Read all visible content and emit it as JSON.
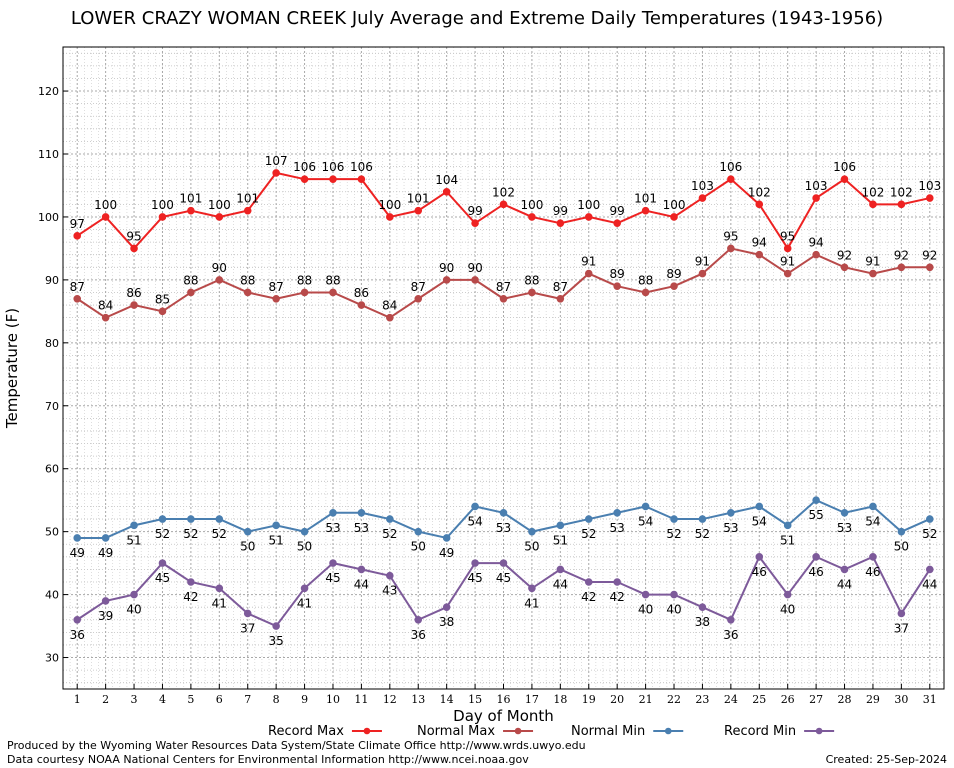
{
  "chart_data": {
    "type": "line",
    "title": "LOWER CRAZY WOMAN CREEK July Average and Extreme Daily Temperatures (1943-1956)",
    "xlabel": "Day of Month",
    "ylabel": "Temperature (F)",
    "xlim": [
      0.5,
      31.5
    ],
    "ylim": [
      25,
      127
    ],
    "y_ticks": [
      30,
      40,
      50,
      60,
      70,
      80,
      90,
      100,
      110,
      120
    ],
    "categories": [
      "1",
      "2",
      "3",
      "4",
      "5",
      "6",
      "7",
      "8",
      "9",
      "10",
      "11",
      "12",
      "13",
      "14",
      "15",
      "16",
      "17",
      "18",
      "19",
      "20",
      "21",
      "22",
      "23",
      "24",
      "25",
      "26",
      "27",
      "28",
      "29",
      "30",
      "31"
    ],
    "grid": true,
    "legend_position": "bottom",
    "series": [
      {
        "name": "Record Max",
        "color": "#ee2222",
        "label_position": "above",
        "values": [
          97,
          100,
          95,
          100,
          101,
          100,
          101,
          107,
          106,
          106,
          106,
          100,
          101,
          104,
          99,
          102,
          100,
          99,
          100,
          99,
          101,
          100,
          103,
          106,
          102,
          95,
          103,
          106,
          102,
          102,
          103
        ]
      },
      {
        "name": "Normal Max",
        "color": "#b84a4a",
        "label_position": "above",
        "values": [
          87,
          84,
          86,
          85,
          88,
          90,
          88,
          87,
          88,
          88,
          86,
          84,
          87,
          90,
          90,
          87,
          88,
          87,
          91,
          89,
          88,
          89,
          91,
          95,
          94,
          91,
          94,
          92,
          91,
          92,
          92
        ]
      },
      {
        "name": "Normal Min",
        "color": "#4a7fb0",
        "label_position": "below",
        "values": [
          49,
          49,
          51,
          52,
          52,
          52,
          50,
          51,
          50,
          53,
          53,
          52,
          50,
          49,
          54,
          53,
          50,
          51,
          52,
          53,
          54,
          52,
          52,
          53,
          54,
          51,
          55,
          53,
          54,
          50,
          52
        ]
      },
      {
        "name": "Record Min",
        "color": "#7d5a9a",
        "label_position": "below",
        "values": [
          36,
          39,
          40,
          45,
          42,
          41,
          37,
          35,
          41,
          45,
          44,
          43,
          36,
          38,
          45,
          45,
          41,
          44,
          42,
          42,
          40,
          40,
          38,
          36,
          46,
          40,
          46,
          44,
          46,
          37,
          44
        ]
      }
    ]
  },
  "footer": {
    "credit_line_1": "Produced by the Wyoming Water Resources Data System/State Climate Office http://www.wrds.uwyo.edu",
    "credit_line_2": "Data courtesy NOAA National Centers for Environmental Information http://www.ncei.noaa.gov",
    "created": "Created: 25-Sep-2024"
  }
}
